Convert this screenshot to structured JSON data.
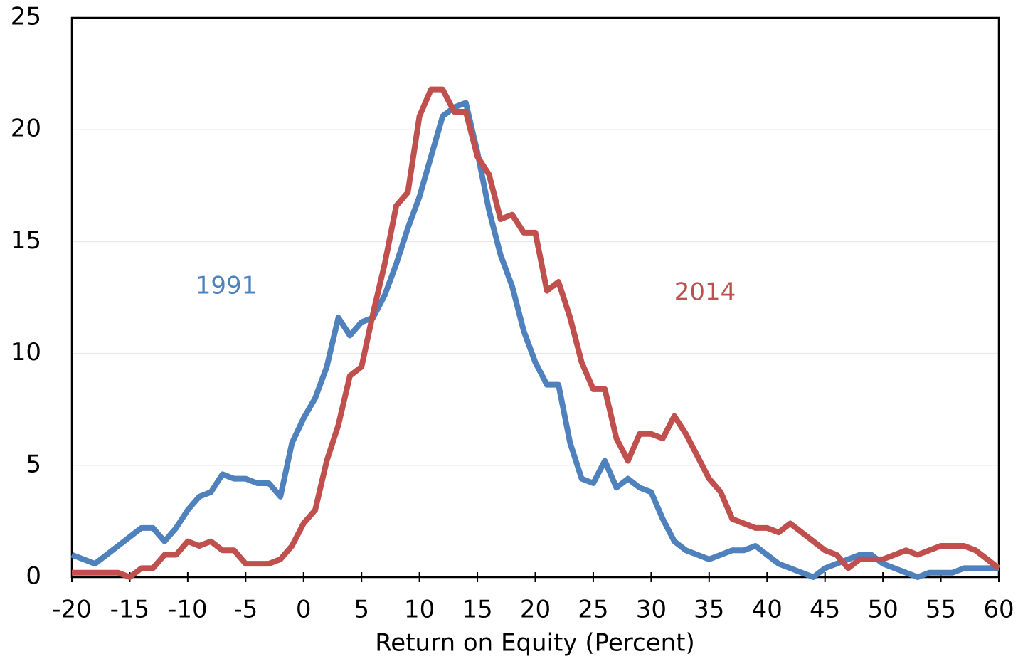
{
  "chart_data": {
    "type": "line",
    "xlabel": "Return on Equity (Percent)",
    "annotations": [
      "1991",
      "2014"
    ],
    "x": [
      -20,
      -19,
      -18,
      -17,
      -16,
      -15,
      -14,
      -13,
      -12,
      -11,
      -10,
      -9,
      -8,
      -7,
      -6,
      -5,
      -4,
      -3,
      -2,
      -1,
      0,
      1,
      2,
      3,
      4,
      5,
      6,
      7,
      8,
      9,
      10,
      11,
      12,
      13,
      14,
      15,
      16,
      17,
      18,
      19,
      20,
      21,
      22,
      23,
      24,
      25,
      26,
      27,
      28,
      29,
      30,
      31,
      32,
      33,
      34,
      35,
      36,
      37,
      38,
      39,
      40,
      41,
      42,
      43,
      44,
      45,
      46,
      47,
      48,
      49,
      50,
      51,
      52,
      53,
      54,
      55,
      56,
      57,
      58,
      59,
      60
    ],
    "series": [
      {
        "name": "1991",
        "color": "#4f81bd",
        "values": [
          1.0,
          0.8,
          0.6,
          1.0,
          1.4,
          1.8,
          2.2,
          2.2,
          1.6,
          2.2,
          3.0,
          3.6,
          3.8,
          4.6,
          4.4,
          4.4,
          4.2,
          4.2,
          3.6,
          6.0,
          7.1,
          8.0,
          9.4,
          11.6,
          10.8,
          11.4,
          11.6,
          12.6,
          14.0,
          15.6,
          17.0,
          18.8,
          20.6,
          21.0,
          21.2,
          19.0,
          16.4,
          14.4,
          13.0,
          11.0,
          9.6,
          8.6,
          8.6,
          6.0,
          4.4,
          4.2,
          5.2,
          4.0,
          4.4,
          4.0,
          3.8,
          2.6,
          1.6,
          1.2,
          1.0,
          0.8,
          1.0,
          1.2,
          1.2,
          1.4,
          1.0,
          0.6,
          0.4,
          0.2,
          0.0,
          0.4,
          0.6,
          0.8,
          1.0,
          1.0,
          0.6,
          0.4,
          0.2,
          0.0,
          0.2,
          0.2,
          0.2,
          0.4,
          0.4,
          0.4,
          0.4
        ]
      },
      {
        "name": "2014",
        "color": "#c0504d",
        "values": [
          0.2,
          0.2,
          0.2,
          0.2,
          0.2,
          0.0,
          0.4,
          0.4,
          1.0,
          1.0,
          1.6,
          1.4,
          1.6,
          1.2,
          1.2,
          0.6,
          0.6,
          0.6,
          0.8,
          1.4,
          2.4,
          3.0,
          5.2,
          6.8,
          9.0,
          9.4,
          11.8,
          14.0,
          16.6,
          17.2,
          20.6,
          21.8,
          21.8,
          20.8,
          20.8,
          18.8,
          18.0,
          16.0,
          16.2,
          15.4,
          15.4,
          12.8,
          13.2,
          11.6,
          9.6,
          8.4,
          8.4,
          6.2,
          5.2,
          6.4,
          6.4,
          6.2,
          7.2,
          6.4,
          5.4,
          4.4,
          3.8,
          2.6,
          2.4,
          2.2,
          2.2,
          2.0,
          2.4,
          2.0,
          1.6,
          1.2,
          1.0,
          0.4,
          0.8,
          0.8,
          0.8,
          1.0,
          1.2,
          1.0,
          1.2,
          1.4,
          1.4,
          1.4,
          1.2,
          0.8,
          0.4
        ]
      }
    ],
    "xlim": [
      -20,
      60
    ],
    "xticks": [
      -20,
      -15,
      -10,
      -5,
      0,
      5,
      10,
      15,
      20,
      25,
      30,
      35,
      40,
      45,
      50,
      55,
      60
    ],
    "ylim": [
      0,
      25
    ],
    "yticks": [
      0,
      5,
      10,
      15,
      20,
      25
    ],
    "grid": true
  }
}
